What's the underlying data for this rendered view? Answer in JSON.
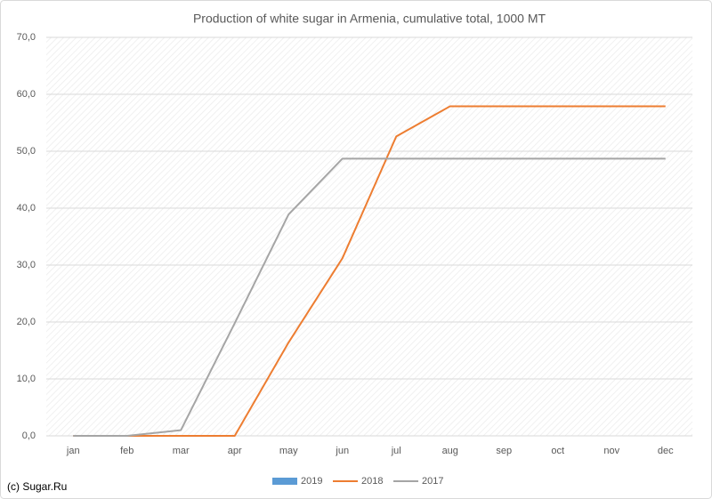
{
  "chart_data": {
    "type": "line",
    "title": "Production of white sugar in Armenia, cumulative total, 1000 MT",
    "categories": [
      "jan",
      "feb",
      "mar",
      "apr",
      "may",
      "jun",
      "jul",
      "aug",
      "sep",
      "oct",
      "nov",
      "dec"
    ],
    "series": [
      {
        "name": "2019",
        "type": "bar",
        "color": "#5b9bd5",
        "values": [
          null,
          null,
          null,
          null,
          null,
          null,
          null,
          null,
          null,
          null,
          null,
          null
        ]
      },
      {
        "name": "2018",
        "color": "#ed7d31",
        "values": [
          0,
          0,
          0,
          0,
          16.4,
          31.2,
          52.6,
          57.9,
          57.9,
          57.9,
          57.9,
          57.9
        ]
      },
      {
        "name": "2017",
        "color": "#a5a5a5",
        "values": [
          0,
          0,
          1.0,
          19.8,
          38.9,
          48.7,
          48.7,
          48.7,
          48.7,
          48.7,
          48.7,
          48.7
        ]
      }
    ],
    "ylim": [
      0,
      70
    ],
    "yticks": [
      {
        "value": 0,
        "label": "0,0"
      },
      {
        "value": 10,
        "label": "10,0"
      },
      {
        "value": 20,
        "label": "20,0"
      },
      {
        "value": 30,
        "label": "30,0"
      },
      {
        "value": 40,
        "label": "40,0"
      },
      {
        "value": 50,
        "label": "50,0"
      },
      {
        "value": 60,
        "label": "60,0"
      },
      {
        "value": 70,
        "label": "70,0"
      }
    ],
    "grid": true,
    "legend": "bottom",
    "footnote": "(c) Sugar.Ru"
  }
}
